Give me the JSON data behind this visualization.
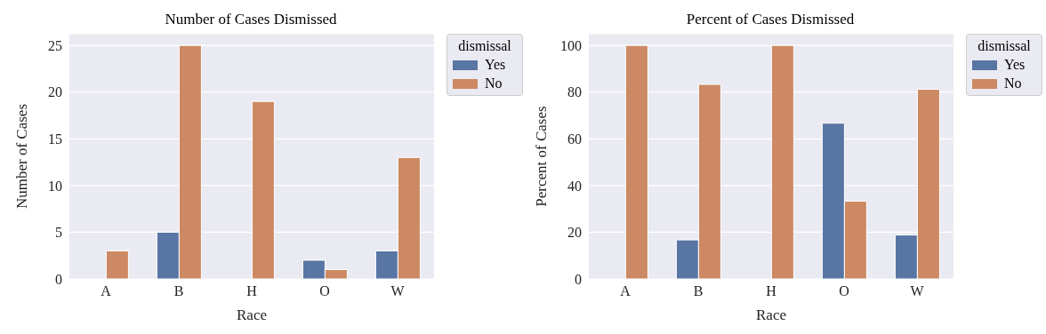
{
  "chart_data": [
    {
      "type": "bar",
      "title": "Number of Cases Dismissed",
      "xlabel": "Race",
      "ylabel": "Number of Cases",
      "legend_title": "dismissal",
      "categories": [
        "A",
        "B",
        "H",
        "O",
        "W"
      ],
      "series": [
        {
          "name": "Yes",
          "color": "#5875a4",
          "values": [
            0,
            5,
            0,
            2,
            3
          ]
        },
        {
          "name": "No",
          "color": "#cc8963",
          "values": [
            3,
            25,
            19,
            1,
            13
          ]
        }
      ],
      "ylim": [
        0,
        26.25
      ],
      "yticks": [
        0,
        5,
        10,
        15,
        20,
        25
      ],
      "grid": "y",
      "legend": "top right"
    },
    {
      "type": "bar",
      "title": "Percent of Cases Dismissed",
      "xlabel": "Race",
      "ylabel": "Percent of Cases",
      "legend_title": "dismissal",
      "categories": [
        "A",
        "B",
        "H",
        "O",
        "W"
      ],
      "series": [
        {
          "name": "Yes",
          "color": "#5875a4",
          "values": [
            0,
            16.7,
            0,
            66.7,
            18.8
          ]
        },
        {
          "name": "No",
          "color": "#cc8963",
          "values": [
            100,
            83.3,
            100,
            33.3,
            81.2
          ]
        }
      ],
      "ylim": [
        0,
        105
      ],
      "yticks": [
        0,
        20,
        40,
        60,
        80,
        100
      ],
      "grid": "y",
      "legend": "top right"
    }
  ]
}
